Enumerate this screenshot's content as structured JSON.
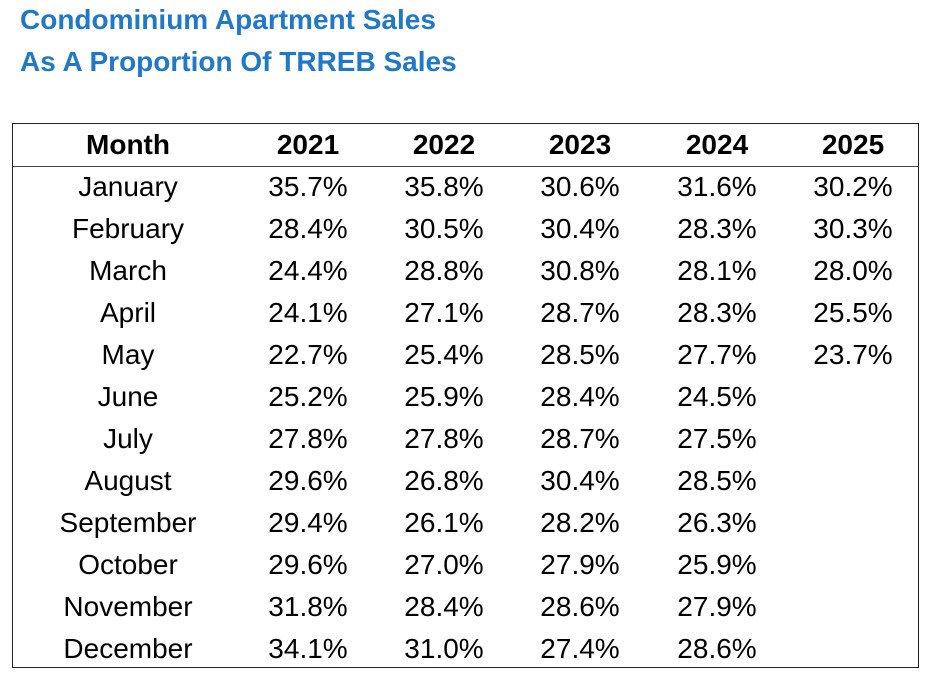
{
  "title": {
    "line1": "Condominium Apartment Sales",
    "line2": "As A Proportion Of TRREB Sales"
  },
  "colors": {
    "title": "#1f78c8",
    "text": "#000000",
    "border": "#222222"
  },
  "table": {
    "headers": [
      "Month",
      "2021",
      "2022",
      "2023",
      "2024",
      "2025"
    ],
    "rows": [
      [
        "January",
        "35.7%",
        "35.8%",
        "30.6%",
        "31.6%",
        "30.2%"
      ],
      [
        "February",
        "28.4%",
        "30.5%",
        "30.4%",
        "28.3%",
        "30.3%"
      ],
      [
        "March",
        "24.4%",
        "28.8%",
        "30.8%",
        "28.1%",
        "28.0%"
      ],
      [
        "April",
        "24.1%",
        "27.1%",
        "28.7%",
        "28.3%",
        "25.5%"
      ],
      [
        "May",
        "22.7%",
        "25.4%",
        "28.5%",
        "27.7%",
        "23.7%"
      ],
      [
        "June",
        "25.2%",
        "25.9%",
        "28.4%",
        "24.5%",
        ""
      ],
      [
        "July",
        "27.8%",
        "27.8%",
        "28.7%",
        "27.5%",
        ""
      ],
      [
        "August",
        "29.6%",
        "26.8%",
        "30.4%",
        "28.5%",
        ""
      ],
      [
        "September",
        "29.4%",
        "26.1%",
        "28.2%",
        "26.3%",
        ""
      ],
      [
        "October",
        "29.6%",
        "27.0%",
        "27.9%",
        "25.9%",
        ""
      ],
      [
        "November",
        "31.8%",
        "28.4%",
        "28.6%",
        "27.9%",
        ""
      ],
      [
        "December",
        "34.1%",
        "31.0%",
        "27.4%",
        "28.6%",
        ""
      ]
    ]
  }
}
